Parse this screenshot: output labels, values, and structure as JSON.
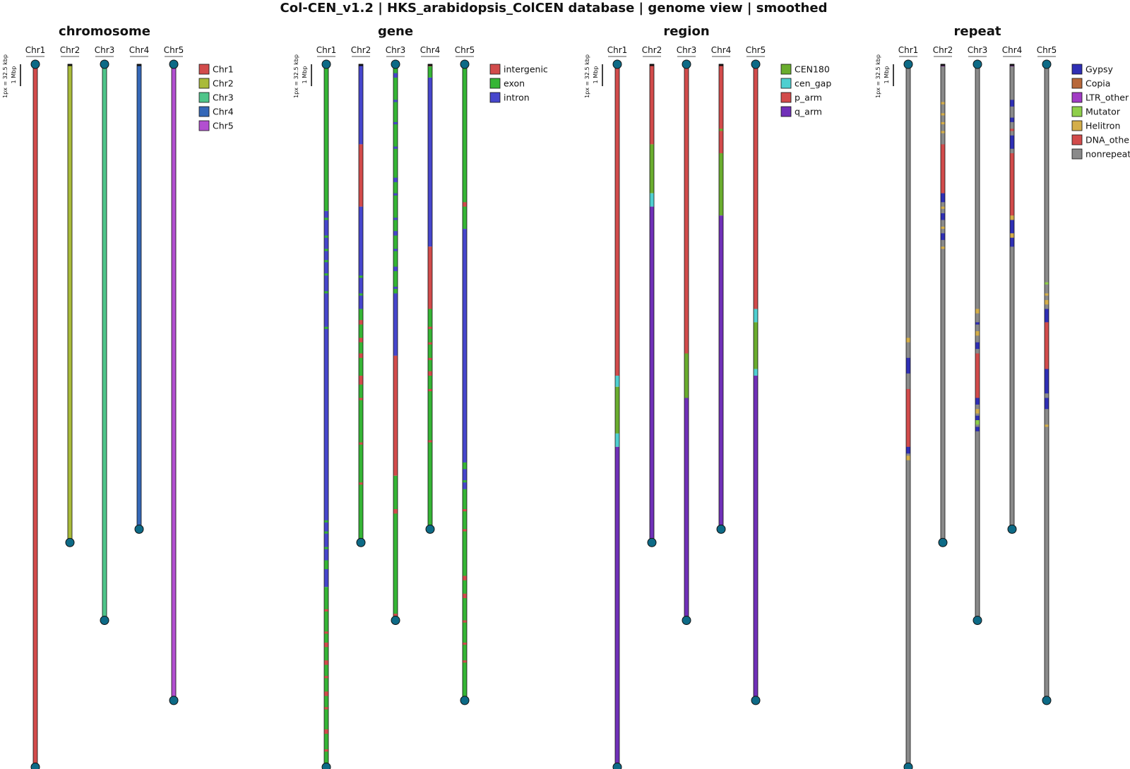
{
  "title": "Col-CEN_v1.2 | HKS_arabidopsis_ColCEN database | genome view | smoothed",
  "scale": {
    "pixel_label": "1px = 32.5 kbp",
    "bar_label": "1 Mbp"
  },
  "colors": {
    "end_cap": "#0d6a86",
    "chr_label_underline": "#555555"
  },
  "chart_data": {
    "type": "ideogram",
    "chromosomes": [
      "Chr1",
      "Chr2",
      "Chr3",
      "Chr4",
      "Chr5"
    ],
    "lengths_mbp": [
      31.6,
      21.5,
      25.0,
      20.9,
      28.6
    ],
    "panels": [
      {
        "title": "chromosome",
        "legend": [
          {
            "label": "Chr1",
            "color": "#d24b4b"
          },
          {
            "label": "Chr2",
            "color": "#a9bb3a"
          },
          {
            "label": "Chr3",
            "color": "#4fc58a"
          },
          {
            "label": "Chr4",
            "color": "#3568b8"
          },
          {
            "label": "Chr5",
            "color": "#b24fd0"
          }
        ],
        "tracks": [
          [
            [
              0,
              31.6,
              "Chr1"
            ]
          ],
          [
            [
              0,
              21.5,
              "Chr2"
            ]
          ],
          [
            [
              0,
              25.0,
              "Chr3"
            ]
          ],
          [
            [
              0,
              20.9,
              "Chr4"
            ]
          ],
          [
            [
              0,
              28.6,
              "Chr5"
            ]
          ]
        ]
      },
      {
        "title": "gene",
        "legend": [
          {
            "label": "intergenic",
            "color": "#d24b4b"
          },
          {
            "label": "exon",
            "color": "#35b535"
          },
          {
            "label": "intron",
            "color": "#4646cc"
          }
        ],
        "tracks": [
          [
            [
              0,
              6.6,
              "exon"
            ],
            [
              6.6,
              23.5,
              "intron"
            ],
            [
              23.5,
              31.6,
              "exon"
            ],
            [
              6.9,
              7.0,
              "exon"
            ],
            [
              7.7,
              7.8,
              "exon"
            ],
            [
              8.3,
              8.4,
              "exon"
            ],
            [
              8.8,
              8.9,
              "exon"
            ],
            [
              9.4,
              9.5,
              "exon"
            ],
            [
              10.2,
              10.3,
              "exon"
            ],
            [
              11.8,
              11.9,
              "exon"
            ],
            [
              20.5,
              20.6,
              "exon"
            ],
            [
              21.0,
              21.1,
              "exon"
            ],
            [
              21.7,
              21.8,
              "exon"
            ],
            [
              22.3,
              22.7,
              "exon"
            ],
            [
              24.5,
              24.6,
              "intergenic"
            ],
            [
              25.5,
              25.6,
              "intergenic"
            ],
            [
              26.0,
              26.2,
              "intergenic"
            ],
            [
              26.8,
              27.0,
              "intergenic"
            ],
            [
              27.5,
              27.6,
              "intergenic"
            ],
            [
              28.2,
              28.4,
              "intergenic"
            ],
            [
              28.9,
              29.0,
              "intergenic"
            ],
            [
              29.9,
              30.1,
              "intergenic"
            ],
            [
              30.8,
              30.9,
              "intergenic"
            ]
          ],
          [
            [
              0,
              3.6,
              "intron"
            ],
            [
              3.6,
              6.4,
              "intergenic"
            ],
            [
              6.4,
              11.0,
              "intron"
            ],
            [
              11.0,
              21.5,
              "exon"
            ],
            [
              9.5,
              9.6,
              "exon"
            ],
            [
              10.3,
              10.4,
              "exon"
            ],
            [
              11.5,
              11.7,
              "intergenic"
            ],
            [
              12.3,
              12.5,
              "intergenic"
            ],
            [
              13.0,
              13.2,
              "intergenic"
            ],
            [
              14.0,
              14.4,
              "intergenic"
            ],
            [
              15.0,
              15.1,
              "intergenic"
            ],
            [
              17.0,
              17.1,
              "intergenic"
            ],
            [
              18.8,
              18.9,
              "intergenic"
            ]
          ],
          [
            [
              0,
              13.1,
              "exon"
            ],
            [
              13.1,
              18.5,
              "intergenic"
            ],
            [
              18.5,
              25.0,
              "exon"
            ],
            [
              0.4,
              0.6,
              "intron"
            ],
            [
              1.6,
              1.7,
              "intron"
            ],
            [
              2.6,
              2.7,
              "intron"
            ],
            [
              3.7,
              3.8,
              "intron"
            ],
            [
              5.1,
              5.3,
              "intron"
            ],
            [
              5.8,
              5.9,
              "intron"
            ],
            [
              6.9,
              7.0,
              "intron"
            ],
            [
              7.5,
              7.7,
              "intron"
            ],
            [
              8.3,
              8.4,
              "intron"
            ],
            [
              9.1,
              9.3,
              "intron"
            ],
            [
              10.0,
              10.1,
              "intron"
            ],
            [
              10.3,
              13.1,
              "intron"
            ],
            [
              20.0,
              20.2,
              "intergenic"
            ],
            [
              24.7,
              24.8,
              "intergenic"
            ]
          ],
          [
            [
              0,
              0.1,
              "intergenic"
            ],
            [
              0.1,
              0.6,
              "exon"
            ],
            [
              0.6,
              8.2,
              "intron"
            ],
            [
              8.2,
              11.0,
              "intergenic"
            ],
            [
              11.0,
              20.9,
              "exon"
            ],
            [
              0.9,
              1.3,
              "intron"
            ],
            [
              11.8,
              11.9,
              "intergenic"
            ],
            [
              12.5,
              12.6,
              "intergenic"
            ],
            [
              13.2,
              13.3,
              "intergenic"
            ],
            [
              13.8,
              14.0,
              "intergenic"
            ],
            [
              14.6,
              14.7,
              "intergenic"
            ],
            [
              16.9,
              17.0,
              "intergenic"
            ]
          ],
          [
            [
              0,
              7.4,
              "exon"
            ],
            [
              7.4,
              28.6,
              "intron"
            ],
            [
              6.2,
              6.4,
              "intergenic"
            ],
            [
              17.9,
              18.2,
              "exon"
            ],
            [
              18.7,
              18.8,
              "exon"
            ],
            [
              19.1,
              28.6,
              "exon"
            ],
            [
              20.0,
              20.1,
              "intergenic"
            ],
            [
              20.9,
              21.0,
              "intergenic"
            ],
            [
              23.0,
              23.2,
              "intergenic"
            ],
            [
              23.8,
              24.0,
              "intergenic"
            ],
            [
              25.0,
              25.1,
              "intergenic"
            ],
            [
              26.0,
              26.1,
              "intergenic"
            ],
            [
              26.8,
              26.9,
              "intergenic"
            ]
          ]
        ]
      },
      {
        "title": "region",
        "legend": [
          {
            "label": "CEN180",
            "color": "#6aad2e"
          },
          {
            "label": "cen_gap",
            "color": "#4fcfd0"
          },
          {
            "label": "p_arm",
            "color": "#d24b4b"
          },
          {
            "label": "q_arm",
            "color": "#7030b8"
          }
        ],
        "tracks": [
          [
            [
              0,
              14.0,
              "p_arm"
            ],
            [
              14.0,
              14.5,
              "cen_gap"
            ],
            [
              14.5,
              16.6,
              "CEN180"
            ],
            [
              16.6,
              17.2,
              "cen_gap"
            ],
            [
              17.2,
              31.6,
              "q_arm"
            ]
          ],
          [
            [
              0,
              3.6,
              "p_arm"
            ],
            [
              3.6,
              5.8,
              "CEN180"
            ],
            [
              5.8,
              6.4,
              "cen_gap"
            ],
            [
              6.4,
              21.5,
              "q_arm"
            ]
          ],
          [
            [
              0,
              13.0,
              "p_arm"
            ],
            [
              13.0,
              15.0,
              "CEN180"
            ],
            [
              15.0,
              25.0,
              "q_arm"
            ]
          ],
          [
            [
              0,
              4.0,
              "p_arm"
            ],
            [
              4.0,
              6.8,
              "CEN180"
            ],
            [
              6.8,
              20.9,
              "q_arm"
            ],
            [
              2.9,
              3.0,
              "CEN180"
            ]
          ],
          [
            [
              0,
              11.0,
              "p_arm"
            ],
            [
              11.0,
              11.6,
              "cen_gap"
            ],
            [
              11.6,
              13.7,
              "CEN180"
            ],
            [
              13.7,
              14.0,
              "cen_gap"
            ],
            [
              14.0,
              28.6,
              "q_arm"
            ]
          ]
        ]
      },
      {
        "title": "repeat",
        "legend": [
          {
            "label": "Gypsy",
            "color": "#2f2fb5"
          },
          {
            "label": "Copia",
            "color": "#b8683a"
          },
          {
            "label": "LTR_other",
            "color": "#a13bc4"
          },
          {
            "label": "Mutator",
            "color": "#8fcf4a"
          },
          {
            "label": "Helitron",
            "color": "#d4ae4a"
          },
          {
            "label": "DNA_other",
            "color": "#d24b4b"
          },
          {
            "label": "nonrepeat",
            "color": "#8a8a8a"
          }
        ],
        "tracks": [
          [
            [
              0,
              31.6,
              "nonrepeat"
            ],
            [
              12.3,
              12.5,
              "Helitron"
            ],
            [
              13.2,
              13.9,
              "Gypsy"
            ],
            [
              14.6,
              17.2,
              "DNA_other"
            ],
            [
              17.2,
              17.5,
              "Gypsy"
            ],
            [
              17.6,
              17.8,
              "Helitron"
            ]
          ],
          [
            [
              0,
              21.5,
              "nonrepeat"
            ],
            [
              0,
              0.1,
              "LTR_other"
            ],
            [
              1.7,
              1.8,
              "Helitron"
            ],
            [
              2.2,
              2.3,
              "Helitron"
            ],
            [
              2.6,
              2.7,
              "Helitron"
            ],
            [
              3.0,
              3.1,
              "Helitron"
            ],
            [
              3.6,
              5.8,
              "DNA_other"
            ],
            [
              5.8,
              6.2,
              "Gypsy"
            ],
            [
              6.4,
              6.5,
              "Helitron"
            ],
            [
              6.7,
              7.0,
              "Gypsy"
            ],
            [
              7.3,
              7.4,
              "Helitron"
            ],
            [
              7.6,
              7.9,
              "Gypsy"
            ],
            [
              8.2,
              8.3,
              "Helitron"
            ]
          ],
          [
            [
              0,
              25.0,
              "nonrepeat"
            ],
            [
              11.0,
              11.2,
              "Helitron"
            ],
            [
              11.6,
              11.7,
              "Gypsy"
            ],
            [
              12.0,
              12.2,
              "Helitron"
            ],
            [
              12.5,
              12.8,
              "Gypsy"
            ],
            [
              13.0,
              15.0,
              "DNA_other"
            ],
            [
              15.0,
              15.3,
              "Gypsy"
            ],
            [
              15.5,
              15.7,
              "Helitron"
            ],
            [
              15.8,
              16.0,
              "Gypsy"
            ],
            [
              16.0,
              16.2,
              "Mutator"
            ],
            [
              16.3,
              16.5,
              "Gypsy"
            ]
          ],
          [
            [
              0,
              20.9,
              "nonrepeat"
            ],
            [
              0,
              0.1,
              "LTR_other"
            ],
            [
              1.6,
              1.9,
              "Gypsy"
            ],
            [
              2.4,
              2.6,
              "Gypsy"
            ],
            [
              2.9,
              3.0,
              "DNA_other"
            ],
            [
              3.2,
              3.8,
              "Gypsy"
            ],
            [
              4.0,
              6.8,
              "DNA_other"
            ],
            [
              6.8,
              7.0,
              "Helitron"
            ],
            [
              7.0,
              7.6,
              "Gypsy"
            ],
            [
              7.6,
              7.8,
              "Helitron"
            ],
            [
              7.8,
              8.2,
              "Gypsy"
            ]
          ],
          [
            [
              0,
              28.6,
              "nonrepeat"
            ],
            [
              9.8,
              9.9,
              "Mutator"
            ],
            [
              10.3,
              10.4,
              "Helitron"
            ],
            [
              10.6,
              10.8,
              "Helitron"
            ],
            [
              11.0,
              11.6,
              "Gypsy"
            ],
            [
              11.6,
              13.7,
              "DNA_other"
            ],
            [
              13.7,
              14.0,
              "Gypsy"
            ],
            [
              14.0,
              14.8,
              "Gypsy"
            ],
            [
              15.0,
              15.5,
              "Gypsy"
            ],
            [
              16.2,
              16.3,
              "Helitron"
            ]
          ]
        ]
      }
    ]
  }
}
